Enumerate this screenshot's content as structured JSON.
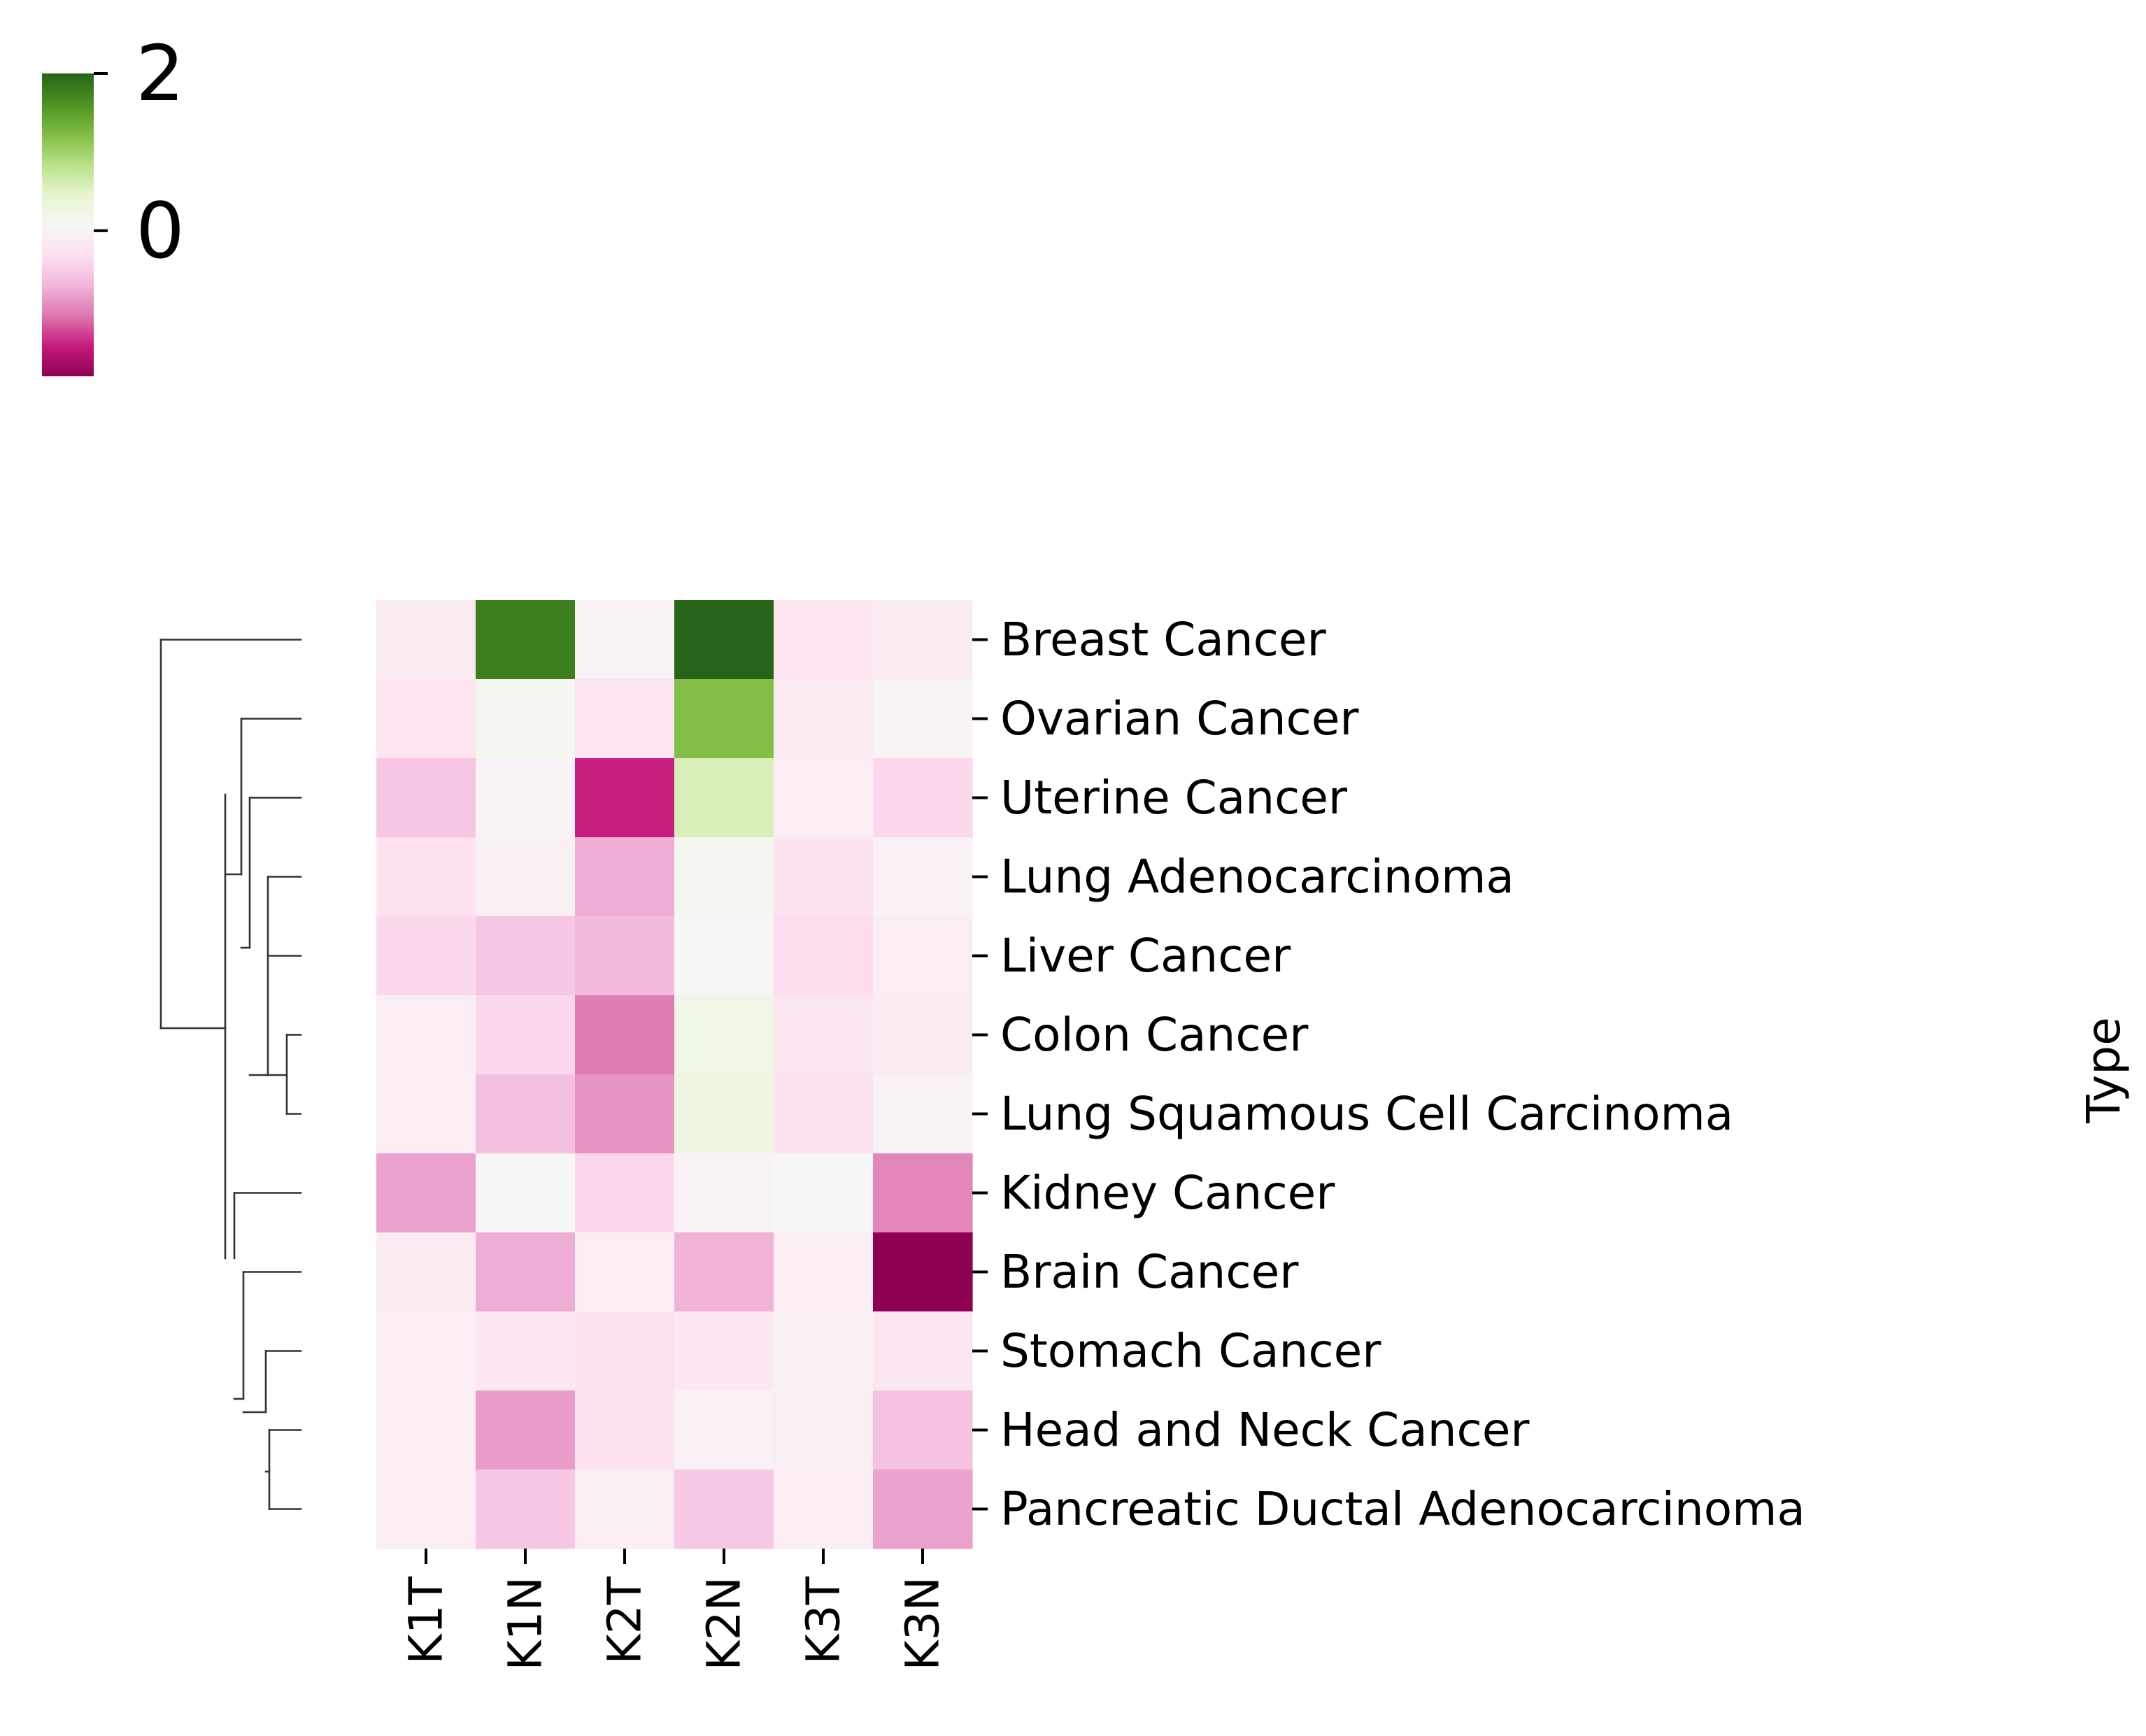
{
  "chart_data": {
    "type": "heatmap",
    "rows": [
      "Breast Cancer",
      "Ovarian Cancer",
      "Uterine Cancer",
      "Lung Adenocarcinoma",
      "Liver Cancer",
      "Colon Cancer",
      "Lung Squamous Cell Carcinoma",
      "Kidney Cancer",
      "Brain Cancer",
      "Stomach Cancer",
      "Head and Neck Cancer",
      "Pancreatic Ductal Adenocarcinoma"
    ],
    "columns": [
      "K1T",
      "K1N",
      "K2T",
      "K2N",
      "K3T",
      "K3N"
    ],
    "values": [
      [
        -0.12,
        1.78,
        -0.02,
        2.0,
        -0.22,
        -0.12
      ],
      [
        -0.25,
        0.15,
        -0.25,
        1.2,
        -0.15,
        0.0
      ],
      [
        -0.55,
        0.0,
        -1.45,
        0.58,
        -0.1,
        -0.38
      ],
      [
        -0.3,
        -0.05,
        -0.75,
        0.15,
        -0.28,
        -0.03
      ],
      [
        -0.38,
        -0.55,
        -0.65,
        0.05,
        -0.35,
        -0.1
      ],
      [
        -0.1,
        -0.38,
        -1.05,
        0.25,
        -0.2,
        -0.12
      ],
      [
        -0.1,
        -0.6,
        -0.9,
        0.28,
        -0.28,
        -0.02
      ],
      [
        -0.82,
        0.05,
        -0.38,
        -0.02,
        0.05,
        -0.98
      ],
      [
        -0.12,
        -0.75,
        -0.1,
        -0.72,
        -0.1,
        -1.85
      ],
      [
        -0.1,
        -0.18,
        -0.3,
        -0.18,
        -0.05,
        -0.2
      ],
      [
        -0.1,
        -0.85,
        -0.28,
        -0.03,
        -0.08,
        -0.58
      ],
      [
        -0.1,
        -0.55,
        -0.08,
        -0.52,
        -0.1,
        -0.82
      ]
    ],
    "colormap": "PiYG",
    "vmin": -1.85,
    "vmax": 2.0,
    "colorbar_ticks": [
      {
        "value": 2,
        "label": "2"
      },
      {
        "value": 0,
        "label": "0"
      }
    ],
    "ylabel": "Type",
    "row_dendrogram": true
  }
}
